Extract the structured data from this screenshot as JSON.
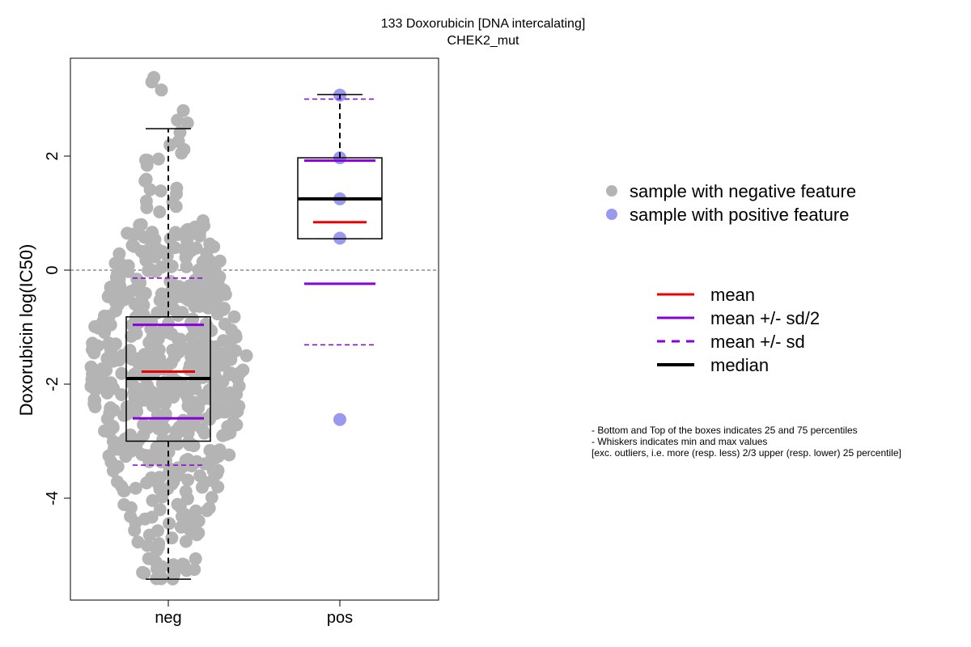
{
  "chart_data": {
    "type": "box",
    "title": "133 Doxorubicin [DNA intercalating]",
    "subtitle": "CHEK2_mut",
    "ylabel": "Doxorubicin log(IC50)",
    "ylim": [
      -5.8,
      3.7
    ],
    "yticks": [
      "-4",
      "-2",
      "0",
      "2"
    ],
    "reference_line_y": 0,
    "categories": [
      "neg",
      "pos"
    ],
    "groups": [
      {
        "name": "neg",
        "box": {
          "q1": -3.0,
          "median": -1.9,
          "q3": -0.82,
          "whisker_low": -5.42,
          "whisker_high": 2.48
        },
        "mean": -1.78,
        "mean_minus_half_sd": -2.6,
        "mean_plus_half_sd": -0.96,
        "mean_minus_sd": -3.42,
        "mean_plus_sd": -0.14,
        "n_points": 600,
        "point_color": "#b4b4b4"
      },
      {
        "name": "pos",
        "box": {
          "q1": 0.55,
          "median": 1.25,
          "q3": 1.97,
          "whisker_low": 0.55,
          "whisker_high": 3.08
        },
        "mean": 0.84,
        "mean_minus_half_sd": -0.24,
        "mean_plus_half_sd": 1.92,
        "mean_minus_sd": -1.31,
        "mean_plus_sd": 3.0,
        "points": [
          3.07,
          1.97,
          1.25,
          0.56,
          -2.62
        ],
        "point_color": "#9999ee"
      }
    ],
    "colors": {
      "mean": "#ee0000",
      "sd": "#8800dd",
      "median": "#000000"
    },
    "legend_samples": [
      {
        "label": "sample with negative feature",
        "color": "#b4b4b4"
      },
      {
        "label": "sample with positive feature",
        "color": "#9999ee"
      }
    ],
    "legend_lines": [
      {
        "label": "mean",
        "color": "#ee0000",
        "style": "solid"
      },
      {
        "label": "mean +/- sd/2",
        "color": "#8800dd",
        "style": "solid"
      },
      {
        "label": "mean +/- sd",
        "color": "#8800dd",
        "style": "dashed"
      },
      {
        "label": "median",
        "color": "#000000",
        "style": "thick"
      }
    ],
    "notes": [
      "- Bottom and Top of the boxes indicates 25 and 75 percentiles",
      "- Whiskers indicates min and max values",
      "[exc. outliers, i.e. more (resp. less) 2/3 upper (resp. lower) 25 percentile]"
    ]
  }
}
